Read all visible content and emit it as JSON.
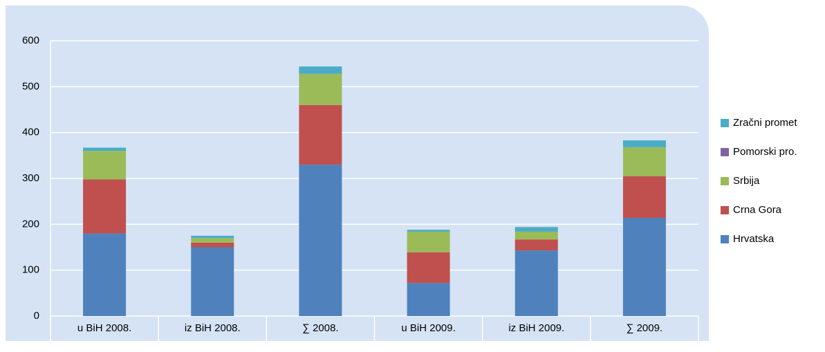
{
  "chart_data": {
    "type": "stacked_bar",
    "categories": [
      "u BiH 2008.",
      "iz BiH 2008.",
      "∑ 2008.",
      "u BiH 2009.",
      "iz BiH 2009.",
      "∑ 2009."
    ],
    "series": [
      {
        "name": "Hrvatska",
        "color": "#4f81bd",
        "values": [
          180,
          150,
          330,
          72,
          143,
          214
        ]
      },
      {
        "name": "Crna Gora",
        "color": "#c0504d",
        "values": [
          118,
          10,
          130,
          67,
          24,
          91
        ]
      },
      {
        "name": "Srbija",
        "color": "#9bbb59",
        "values": [
          62,
          10,
          68,
          45,
          17,
          63
        ]
      },
      {
        "name": "Pomorski pro.",
        "color": "#8064a2",
        "values": [
          0,
          0,
          0,
          0,
          0,
          0
        ]
      },
      {
        "name": "Zračni promet",
        "color": "#4bacc6",
        "values": [
          7,
          5,
          16,
          4,
          10,
          15
        ]
      }
    ],
    "ylim": [
      0,
      600
    ],
    "yticks": [
      0,
      100,
      200,
      300,
      400,
      500,
      600
    ],
    "grid": true,
    "legend": "right"
  }
}
